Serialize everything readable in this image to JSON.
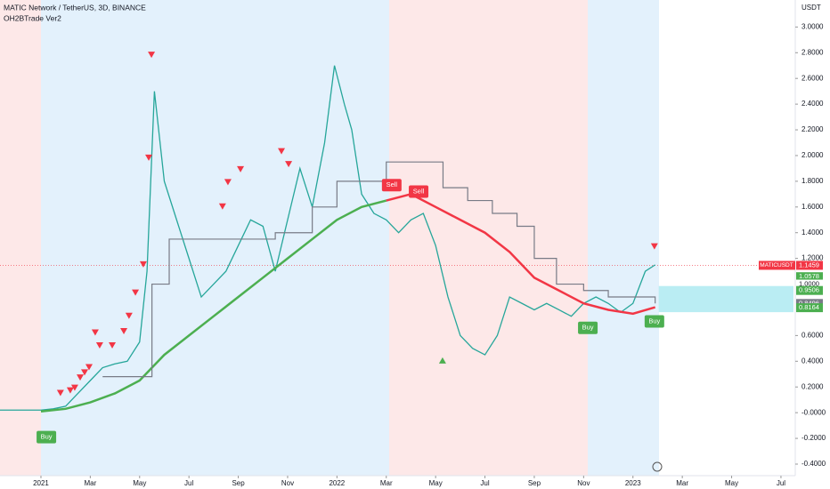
{
  "chart_data": {
    "type": "line",
    "title": "MATIC Network / TetherUS, 3D, BINANCE",
    "subtitle": "OH2BTrade Ver2",
    "y_axis_label": "USDT",
    "xlim": [
      -1.66,
      30.58
    ],
    "ylim": [
      -0.49,
      3.21
    ],
    "xticks": [
      {
        "value": 0,
        "label": "2021"
      },
      {
        "value": 2,
        "label": "Mar"
      },
      {
        "value": 4,
        "label": "May"
      },
      {
        "value": 6,
        "label": "Jul"
      },
      {
        "value": 8,
        "label": "Sep"
      },
      {
        "value": 10,
        "label": "Nov"
      },
      {
        "value": 12,
        "label": "2022"
      },
      {
        "value": 14,
        "label": "Mar"
      },
      {
        "value": 16,
        "label": "May"
      },
      {
        "value": 18,
        "label": "Jul"
      },
      {
        "value": 20,
        "label": "Sep"
      },
      {
        "value": 22,
        "label": "Nov"
      },
      {
        "value": 24,
        "label": "2023"
      },
      {
        "value": 26,
        "label": "Mar"
      },
      {
        "value": 28,
        "label": "May"
      },
      {
        "value": 30,
        "label": "Jul"
      }
    ],
    "yticks": [
      {
        "value": 3,
        "label": "3.0000"
      },
      {
        "value": 2.8,
        "label": "2.8000"
      },
      {
        "value": 2.6,
        "label": "2.6000"
      },
      {
        "value": 2.4,
        "label": "2.4000"
      },
      {
        "value": 2.2,
        "label": "2.2000"
      },
      {
        "value": 2,
        "label": "2.0000"
      },
      {
        "value": 1.8,
        "label": "1.8000"
      },
      {
        "value": 1.6,
        "label": "1.6000"
      },
      {
        "value": 1.4,
        "label": "1.4000"
      },
      {
        "value": 1.2,
        "label": "1.2000"
      },
      {
        "value": 0.6,
        "label": "0.6000"
      },
      {
        "value": 0.4,
        "label": "0.4000"
      },
      {
        "value": 0.2,
        "label": "0.2000"
      },
      {
        "value": 0,
        "label": "-0.0000"
      },
      {
        "value": -0.2,
        "label": "-0.2000"
      },
      {
        "value": -0.4,
        "label": "-0.4000"
      }
    ],
    "series": [
      {
        "color": "#26a69a",
        "width": 1.3,
        "x": [
          -1.66,
          0,
          0.5,
          1,
          1.5,
          2,
          2.5,
          3,
          3.5,
          4,
          4.3,
          4.6,
          5,
          5.5,
          6,
          6.5,
          7,
          7.5,
          8,
          8.5,
          9,
          9.5,
          10,
          10.5,
          11,
          11.5,
          11.9,
          12.3,
          12.6,
          13,
          13.5,
          14,
          14.5,
          15,
          15.5,
          16,
          16.5,
          17,
          17.5,
          18,
          18.5,
          19,
          19.5,
          20,
          20.5,
          21,
          21.5,
          22,
          22.5,
          23,
          23.5,
          24,
          24.5,
          24.9
        ],
        "values": [
          0.02,
          0.02,
          0.03,
          0.05,
          0.15,
          0.25,
          0.35,
          0.38,
          0.4,
          0.55,
          1.1,
          2.5,
          1.8,
          1.5,
          1.2,
          0.9,
          1.0,
          1.1,
          1.3,
          1.5,
          1.45,
          1.1,
          1.5,
          1.9,
          1.6,
          2.1,
          2.7,
          2.4,
          2.2,
          1.7,
          1.55,
          1.5,
          1.4,
          1.5,
          1.55,
          1.3,
          0.9,
          0.6,
          0.5,
          0.45,
          0.6,
          0.9,
          0.85,
          0.8,
          0.85,
          0.8,
          0.75,
          0.85,
          0.9,
          0.85,
          0.78,
          0.85,
          1.1,
          1.15
        ]
      },
      {
        "color": "#4caf50",
        "width": 2.5,
        "x": [
          0,
          1,
          2,
          3,
          4,
          5,
          6,
          7,
          8,
          9,
          10,
          11,
          12,
          13,
          14
        ],
        "values": [
          0.01,
          0.03,
          0.08,
          0.15,
          0.25,
          0.45,
          0.6,
          0.75,
          0.9,
          1.05,
          1.2,
          1.35,
          1.5,
          1.6,
          1.65
        ]
      },
      {
        "color": "#f23645",
        "width": 2.5,
        "x": [
          14,
          15,
          16,
          17,
          18,
          19,
          20,
          21,
          22,
          23,
          24,
          24.9
        ],
        "values": [
          1.65,
          1.7,
          1.6,
          1.5,
          1.4,
          1.25,
          1.05,
          0.95,
          0.85,
          0.8,
          0.77,
          0.82
        ]
      },
      {
        "color": "#787b86",
        "width": 1.2,
        "step": true,
        "x": [
          2.5,
          4.5,
          5.2,
          9.5,
          11,
          12,
          14,
          15.5,
          16.3,
          17.3,
          18.3,
          19.3,
          20,
          20.9,
          22,
          23,
          24.9
        ],
        "values": [
          0.28,
          1.0,
          1.35,
          1.4,
          1.6,
          1.8,
          1.95,
          1.95,
          1.75,
          1.65,
          1.55,
          1.45,
          1.2,
          1.0,
          0.95,
          0.9,
          0.85
        ]
      }
    ],
    "sell_arrows": {
      "color": "#f23645",
      "x": [
        4.48,
        4.37,
        4.15,
        3.83,
        3.57,
        3.36,
        2.89,
        2.2,
        2.38,
        1.95,
        1.77,
        1.59,
        1.37,
        1.19,
        0.79,
        7.58,
        7.36,
        8.09,
        9.75,
        10.04,
        24.87
      ],
      "values": [
        2.78,
        1.98,
        1.15,
        0.93,
        0.75,
        0.63,
        0.52,
        0.62,
        0.52,
        0.35,
        0.31,
        0.27,
        0.19,
        0.17,
        0.15,
        1.79,
        1.6,
        1.89,
        2.03,
        1.93,
        1.29
      ]
    },
    "buy_arrows": {
      "color": "#4caf50",
      "x": [
        16.28
      ],
      "values": [
        0.41
      ]
    },
    "signals": [
      {
        "label": "Buy",
        "color": "#4caf50",
        "x": 0.22,
        "value": -0.19
      },
      {
        "label": "Buy",
        "color": "#4caf50",
        "x": 22.17,
        "value": 0.66
      },
      {
        "label": "Buy",
        "color": "#4caf50",
        "x": 24.87,
        "value": 0.71
      },
      {
        "label": "Sell",
        "color": "#f23645",
        "x": 14.22,
        "value": 1.77
      },
      {
        "label": "Sell",
        "color": "#f23645",
        "x": 15.31,
        "value": 1.72
      }
    ],
    "symbol_tag": "MATICUSDT",
    "price_levels": {
      "values": [
        1.1459,
        1.0578,
        1,
        0.9506,
        0.8496,
        0.8164
      ],
      "value_labels": [
        "1.1459",
        "1.0578",
        "1.0000",
        "0.9506",
        "0.8496",
        "0.8164"
      ],
      "colors": [
        "#f23645",
        "#4caf50",
        "#ffffff",
        "#4caf50",
        "#787b86",
        "#4caf50"
      ]
    }
  }
}
